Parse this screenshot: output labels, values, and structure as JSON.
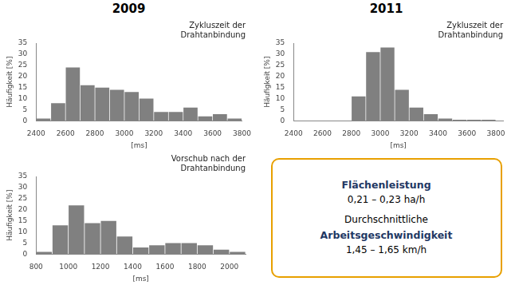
{
  "chart_data": [
    {
      "type": "histogram",
      "subtitle": "2009",
      "title": "Zykluszeit der\nDrahtanbindung",
      "bins": [
        2400,
        2500,
        2600,
        2700,
        2800,
        2900,
        3000,
        3100,
        3200,
        3300,
        3400,
        3500,
        3600,
        3700,
        3800
      ],
      "values": [
        1,
        8,
        24,
        16,
        15,
        14,
        13,
        10,
        4,
        4,
        6,
        2,
        3,
        1
      ],
      "color": "#808080",
      "xlabel": "[ms]",
      "ylabel": "Häufigkeit [%]",
      "xlim": [
        2400,
        3800
      ],
      "xticks": [
        2400,
        2600,
        2800,
        3000,
        3200,
        3400,
        3600,
        3800
      ],
      "ylim": [
        0,
        35
      ],
      "yticks": [
        0,
        5,
        10,
        15,
        20,
        25,
        30,
        35
      ],
      "grid": false
    },
    {
      "type": "histogram",
      "subtitle": "2011",
      "title": "Zykluszeit der\nDrahtanbindung",
      "bins": [
        2400,
        2500,
        2600,
        2700,
        2800,
        2900,
        3000,
        3100,
        3200,
        3300,
        3400,
        3500,
        3600,
        3700,
        3800
      ],
      "values": [
        0,
        0,
        0,
        0,
        11,
        31,
        33,
        14,
        6,
        3,
        1,
        0.5,
        0.5,
        0.5
      ],
      "color": "#808080",
      "xlabel": "[ms]",
      "ylabel": "Häufigkeit [%]",
      "xlim": [
        2400,
        3850
      ],
      "xticks": [
        2400,
        2600,
        2800,
        3000,
        3200,
        3400,
        3600,
        3800
      ],
      "ylim": [
        0,
        35
      ],
      "yticks": [
        0,
        5,
        10,
        15,
        20,
        25,
        30,
        35
      ],
      "grid": false
    },
    {
      "type": "histogram",
      "title": "Vorschub nach der\nDrahtanbindung",
      "bins": [
        800,
        900,
        1000,
        1100,
        1200,
        1300,
        1400,
        1500,
        1600,
        1700,
        1800,
        1900,
        2000,
        2100
      ],
      "values": [
        1,
        13,
        22,
        14,
        15,
        8,
        3,
        4,
        5,
        5,
        4,
        2,
        1
      ],
      "color": "#808080",
      "xlabel": "[ms]",
      "ylabel": "Häufigkeit [%]",
      "xlim": [
        800,
        2100
      ],
      "xticks": [
        800,
        1000,
        1200,
        1400,
        1600,
        1800,
        2000
      ],
      "ylim": [
        0,
        35
      ],
      "yticks": [
        0,
        5,
        10,
        15,
        20,
        25,
        30,
        35
      ],
      "grid": false
    },
    {
      "type": "text",
      "color": "#E8A000",
      "annotations": [
        {
          "text": "Flächenleistung",
          "color": "#1F3864"
        },
        {
          "text": "0,21 – 0,23 ha/h",
          "color": "#000000"
        },
        {
          "text": "Durchschnittliche",
          "color": "#000000"
        },
        {
          "text": "Arbeitsgeschwindigkeit",
          "color": "#1F3864"
        },
        {
          "text": "1,45 – 1,65 km/h",
          "color": "#000000"
        }
      ]
    }
  ]
}
